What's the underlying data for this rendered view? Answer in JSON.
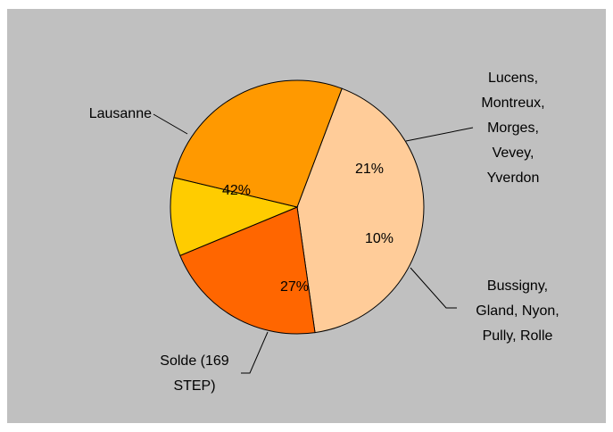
{
  "chart_data": {
    "type": "pie",
    "categories": [
      "Lausanne",
      "Lucens, Montreux, Morges, Vevey, Yverdon",
      "Bussigny, Gland, Nyon, Pully, Rolle",
      "Solde (169 STEP)"
    ],
    "values": [
      42,
      21,
      10,
      27
    ],
    "value_labels": [
      "42%",
      "21%",
      "10%",
      "27%"
    ],
    "colors": [
      "#ffcc99",
      "#ff6600",
      "#ffcc00",
      "#ff9900"
    ]
  }
}
